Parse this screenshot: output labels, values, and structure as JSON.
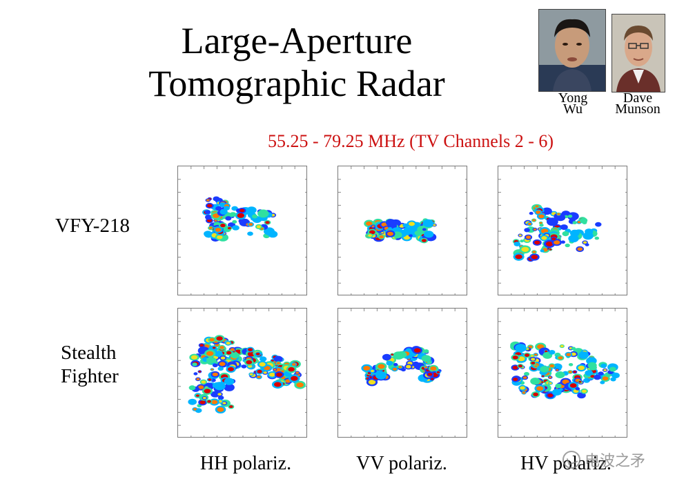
{
  "slide": {
    "title_line1": "Large-Aperture",
    "title_line2": "Tomographic Radar",
    "subtitle": "55.25 - 79.25 MHz (TV Channels 2 - 6)"
  },
  "people": [
    {
      "first": "Yong",
      "last": "Wu"
    },
    {
      "first": "Dave",
      "last": "Munson"
    }
  ],
  "rows": [
    {
      "label_line1": "VFY-218",
      "label_line2": ""
    },
    {
      "label_line1": "Stealth",
      "label_line2": "Fighter"
    }
  ],
  "columns": [
    "HH polariz.",
    "VV polariz.",
    "HV polariz."
  ],
  "colors": {
    "subtitle": "#cc1111",
    "colormap": [
      "#1a3cff",
      "#00b4ff",
      "#30e0a0",
      "#f0e020",
      "#ff7a00",
      "#d80000"
    ]
  },
  "watermark": {
    "text": "电波之矛",
    "icon": "wechat-icon"
  }
}
